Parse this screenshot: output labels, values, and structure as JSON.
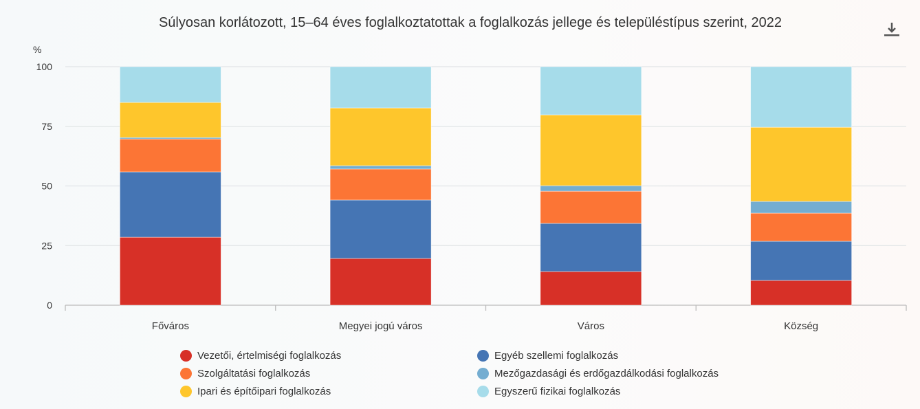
{
  "chart_data": {
    "type": "bar",
    "stacked": true,
    "title": "Súlyosan korlátozott, 15–64 éves foglalkoztatottak a foglalkozás jellege és településtípus szerint, 2022",
    "ylabel": "%",
    "xlabel": "",
    "ylim": [
      0,
      100
    ],
    "yticks": [
      "0",
      "25",
      "50",
      "75",
      "100"
    ],
    "grid": true,
    "legend_position": "bottom",
    "categories": [
      "Főváros",
      "Megyei jogú város",
      "Város",
      "Község"
    ],
    "series": [
      {
        "name": "Vezetői, értelmiségi foglalkozás",
        "color": "#d73027",
        "values": [
          28.5,
          19.6,
          14.1,
          10.4
        ]
      },
      {
        "name": "Egyéb szellemi foglalkozás",
        "color": "#4575b4",
        "values": [
          27.4,
          24.5,
          20.2,
          16.4
        ]
      },
      {
        "name": "Szolgáltatási foglalkozás",
        "color": "#fc7535",
        "values": [
          13.8,
          13.0,
          13.5,
          11.8
        ]
      },
      {
        "name": "Mezőgazdasági és erdőgazdálkodási foglalkozás",
        "color": "#74add1",
        "values": [
          0.6,
          1.4,
          2.3,
          4.9
        ]
      },
      {
        "name": "Ipari és építőipari foglalkozás",
        "color": "#fec62c",
        "values": [
          14.7,
          24.2,
          29.7,
          31.1
        ]
      },
      {
        "name": "Egyszerű fizikai foglalkozás",
        "color": "#a6dcea",
        "values": [
          15.0,
          17.3,
          20.2,
          25.4
        ]
      }
    ]
  },
  "toolbar": {
    "download_icon": "download-icon"
  }
}
